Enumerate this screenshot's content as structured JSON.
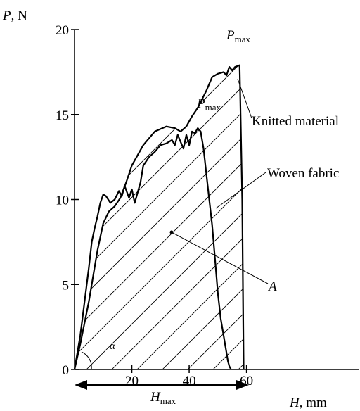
{
  "chart_data": {
    "type": "line",
    "title": "",
    "xlabel_symbol": "H",
    "xlabel_unit": ", mm",
    "ylabel_symbol": "P",
    "ylabel_unit": ", N",
    "xlim": [
      0,
      60
    ],
    "ylim": [
      0,
      20
    ],
    "x_ticks": [
      20,
      40,
      60
    ],
    "y_ticks": [
      0,
      5,
      10,
      15,
      20
    ],
    "grid": false,
    "series": [
      {
        "name": "Knitted material",
        "x": [
          0,
          2,
          5,
          8,
          10,
          12,
          14,
          16,
          18,
          20,
          24,
          28,
          32,
          35,
          37,
          39,
          41,
          43,
          46,
          48,
          50,
          52,
          53,
          54,
          55,
          56,
          57.6,
          58.5,
          59
        ],
        "y": [
          0,
          1.5,
          4,
          7,
          8.6,
          9.3,
          9.6,
          10.1,
          11,
          12,
          13.2,
          14,
          14.3,
          14.2,
          14.0,
          14.3,
          14.9,
          15.4,
          16.4,
          17.2,
          17.4,
          17.5,
          17.3,
          17.8,
          17.6,
          17.8,
          17.9,
          10,
          0
        ]
      },
      {
        "name": "Woven fabric",
        "x": [
          0,
          2,
          3.5,
          5,
          6,
          7,
          8,
          9,
          10,
          11,
          12.5,
          14,
          15.5,
          16.5,
          17.5,
          19,
          20,
          21,
          22,
          23,
          24,
          26,
          28,
          30,
          32,
          34,
          35,
          36,
          37,
          38,
          39,
          40,
          41,
          42,
          43,
          44,
          45,
          46,
          47,
          48,
          49,
          50,
          51,
          52,
          53,
          53.5,
          54,
          54.6
        ],
        "y": [
          0,
          2.0,
          4.0,
          6.0,
          7.5,
          8.3,
          9.0,
          9.8,
          10.3,
          10.2,
          9.8,
          10.0,
          10.5,
          10.2,
          10.8,
          10.1,
          10.6,
          9.8,
          10.4,
          11.0,
          12.0,
          12.5,
          12.8,
          13.2,
          13.3,
          13.5,
          13.2,
          13.8,
          13.4,
          13.0,
          13.8,
          13.2,
          14.0,
          13.9,
          14.2,
          14.0,
          13.0,
          11.5,
          10.0,
          8.5,
          6.5,
          4.5,
          3.0,
          2.0,
          1.0,
          0.5,
          0.2,
          0
        ]
      }
    ],
    "hatched_region": "A",
    "annotations": {
      "peak_label": "P",
      "peak_sub": "max",
      "area_label": "A",
      "angle_label": "α",
      "width_label": "H",
      "width_sub": "max",
      "label_knitted": "Knitted material",
      "label_woven": "Woven fabric"
    }
  }
}
